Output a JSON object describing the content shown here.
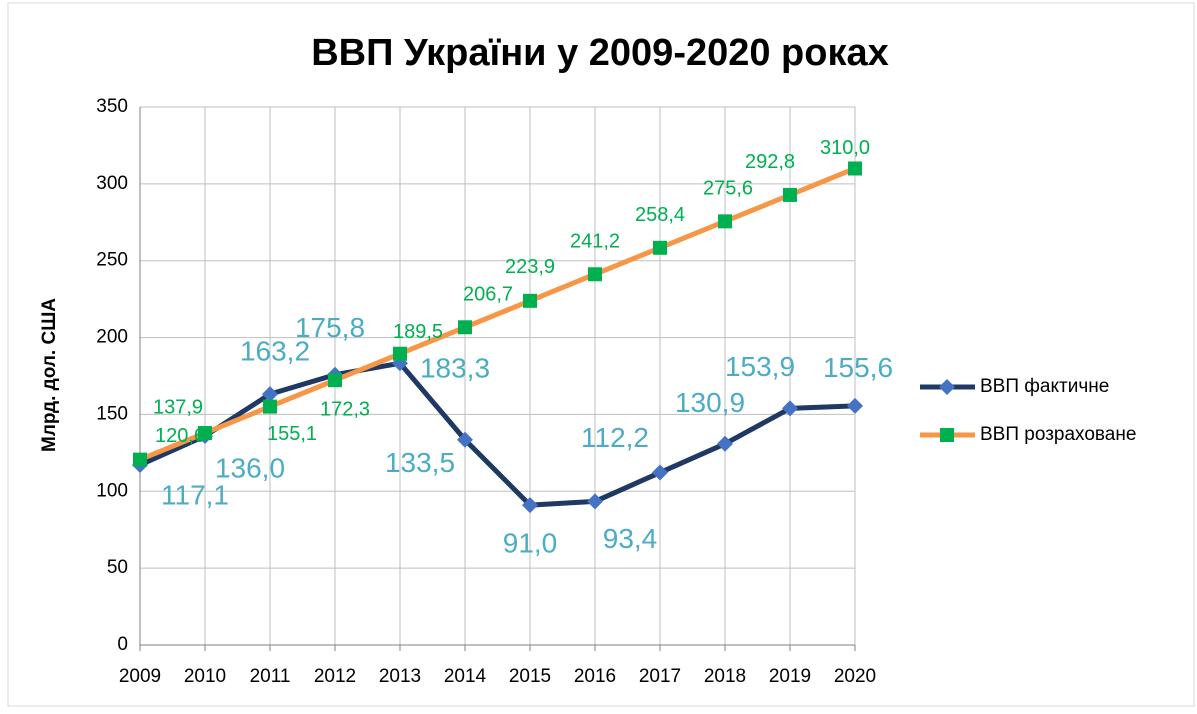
{
  "chart_data": {
    "type": "line",
    "title": "ВВП України у 2009-2020 роках",
    "y_label": "Млрд. дол. США",
    "categories": [
      "2009",
      "2010",
      "2011",
      "2012",
      "2013",
      "2014",
      "2015",
      "2016",
      "2017",
      "2018",
      "2019",
      "2020"
    ],
    "series": [
      {
        "name": "ВВП фактичне",
        "color": "#1f3864",
        "marker": "diamond",
        "marker_color": "#4472c4",
        "label_color": "#4bacc6",
        "values": [
          117.1,
          136.0,
          163.2,
          175.8,
          183.3,
          133.5,
          91.0,
          93.4,
          112.2,
          130.9,
          153.9,
          155.6
        ],
        "value_labels": [
          "117,1",
          "136,0",
          "163,2",
          "175,8",
          "183,3",
          "133,5",
          "91,0",
          "93,4",
          "112,2",
          "130,9",
          "153,9",
          "155,6"
        ]
      },
      {
        "name": "ВВП розраховане",
        "color": "#f79646",
        "marker": "square",
        "marker_color": "#00b050",
        "label_color": "#00b050",
        "values": [
          120.6,
          137.9,
          155.1,
          172.3,
          189.5,
          206.7,
          223.9,
          241.2,
          258.4,
          275.6,
          292.8,
          310.0
        ],
        "value_labels": [
          "120,6",
          "137,9",
          "155,1",
          "172,3",
          "189,5",
          "206,7",
          "223,9",
          "241,2",
          "258,4",
          "275,6",
          "292,8",
          "310,0"
        ]
      }
    ],
    "ylim": [
      0,
      350
    ],
    "yticks": [
      0,
      50,
      100,
      150,
      200,
      250,
      300,
      350
    ],
    "grid": true,
    "legend": "right"
  }
}
